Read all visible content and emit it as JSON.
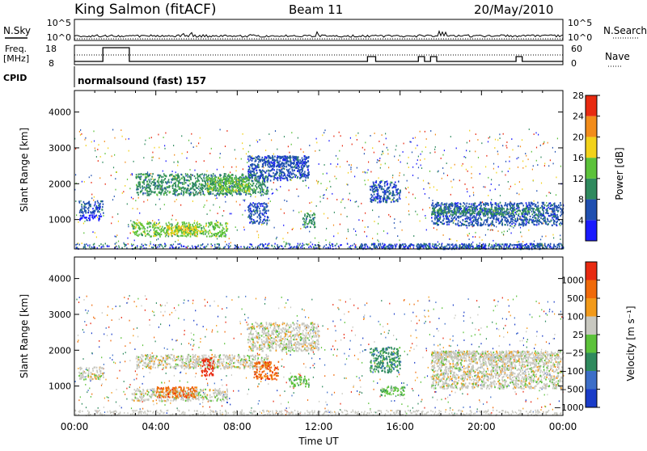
{
  "header": {
    "station": "King Salmon (fitACF)",
    "beam": "Beam 11",
    "date": "20/May/2010"
  },
  "top_panels": {
    "nsky_label": "N.Sky",
    "nsearch_label": "N.Search",
    "noise_ticks": [
      "10^5",
      "10^0"
    ],
    "freq_label_1": "Freq.",
    "freq_label_2": "[MHz]",
    "freq_ticks": [
      18,
      8
    ],
    "nave_label": "Nave",
    "nave_ticks": [
      60,
      0
    ],
    "cpid_label": "CPID",
    "cpid_value": "normalsound (fast) 157"
  },
  "chart_data": [
    {
      "type": "heatmap",
      "name": "power",
      "ylabel": "Slant Range [km]",
      "ylim": [
        180,
        4600
      ],
      "yticks": [
        1000,
        2000,
        3000,
        4000
      ],
      "xlim": [
        0,
        24
      ],
      "xticks": [
        "00:00",
        "04:00",
        "08:00",
        "12:00",
        "16:00",
        "20:00",
        "00:00"
      ],
      "colorbar": {
        "label": "Power [dB]",
        "ticks": [
          "4",
          "8",
          "12",
          "16",
          "20",
          "24",
          "28"
        ],
        "colors": [
          "#1a1aff",
          "#1f4fb0",
          "#2f8a5e",
          "#5cc23a",
          "#f2d21a",
          "#f28c1a",
          "#e82a10"
        ]
      },
      "regions": [
        {
          "t0": 0.2,
          "t1": 1.4,
          "r0": 1200,
          "r1": 1550,
          "level": 1
        },
        {
          "t0": 0.2,
          "t1": 1.3,
          "r0": 1000,
          "r1": 1150,
          "level": 0
        },
        {
          "t0": 2.8,
          "t1": 7.5,
          "r0": 550,
          "r1": 950,
          "level": 3
        },
        {
          "t0": 4.5,
          "t1": 6.0,
          "r0": 600,
          "r1": 850,
          "level": 4
        },
        {
          "t0": 3.0,
          "t1": 9.5,
          "r0": 1700,
          "r1": 2300,
          "level": 2
        },
        {
          "t0": 6.5,
          "t1": 8.7,
          "r0": 1800,
          "r1": 2200,
          "level": 3
        },
        {
          "t0": 8.5,
          "t1": 11.5,
          "r0": 2100,
          "r1": 2800,
          "level": 1
        },
        {
          "t0": 9.5,
          "t1": 11.0,
          "r0": 2500,
          "r1": 2800,
          "level": 1
        },
        {
          "t0": 8.5,
          "t1": 9.5,
          "r0": 900,
          "r1": 1500,
          "level": 1
        },
        {
          "t0": 11.2,
          "t1": 11.8,
          "r0": 800,
          "r1": 1200,
          "level": 2
        },
        {
          "t0": 14.5,
          "t1": 16.0,
          "r0": 1500,
          "r1": 2100,
          "level": 1
        },
        {
          "t0": 17.5,
          "t1": 24.0,
          "r0": 850,
          "r1": 1500,
          "level": 1
        },
        {
          "t0": 17.5,
          "t1": 23.0,
          "r0": 1150,
          "r1": 1350,
          "level": 2
        },
        {
          "t0": 14.0,
          "t1": 24.0,
          "r0": 200,
          "r1": 350,
          "level": 1
        }
      ]
    },
    {
      "type": "heatmap",
      "name": "velocity",
      "ylabel": "Slant Range [km]",
      "ylim": [
        180,
        4600
      ],
      "yticks": [
        1000,
        2000,
        3000,
        4000
      ],
      "xlim": [
        0,
        24
      ],
      "xticks": [
        "00:00",
        "04:00",
        "08:00",
        "12:00",
        "16:00",
        "20:00",
        "00:00"
      ],
      "xlabel": "Time UT",
      "colorbar": {
        "label": "Velocity [m s⁻¹]",
        "ticks": [
          "1000",
          "500",
          "100",
          "25",
          "−25",
          "−100",
          "−500",
          "−1000"
        ],
        "colors": [
          "#1a3cc8",
          "#3c6ec8",
          "#2f8a5e",
          "#5cc23a",
          "#c8c8c0",
          "#f29a1a",
          "#f06a0a",
          "#e82a10"
        ]
      },
      "regions": [
        {
          "t0": 0.2,
          "t1": 1.4,
          "r0": 1200,
          "r1": 1550,
          "level": 4
        },
        {
          "t0": 2.8,
          "t1": 7.5,
          "r0": 600,
          "r1": 950,
          "level": 4
        },
        {
          "t0": 4.0,
          "t1": 6.0,
          "r0": 700,
          "r1": 1000,
          "level": 6
        },
        {
          "t0": 3.0,
          "t1": 9.5,
          "r0": 1500,
          "r1": 1900,
          "level": 4
        },
        {
          "t0": 6.2,
          "t1": 6.8,
          "r0": 1300,
          "r1": 1800,
          "level": 7
        },
        {
          "t0": 8.8,
          "t1": 10.0,
          "r0": 1200,
          "r1": 1700,
          "level": 6
        },
        {
          "t0": 8.5,
          "t1": 12.0,
          "r0": 2000,
          "r1": 2800,
          "level": 4
        },
        {
          "t0": 10.5,
          "t1": 11.5,
          "r0": 1000,
          "r1": 1300,
          "level": 3
        },
        {
          "t0": 14.5,
          "t1": 16.0,
          "r0": 1400,
          "r1": 2100,
          "level": 2
        },
        {
          "t0": 15.0,
          "t1": 16.2,
          "r0": 750,
          "r1": 1000,
          "level": 3
        },
        {
          "t0": 17.5,
          "t1": 24.0,
          "r0": 950,
          "r1": 2000,
          "level": 4
        },
        {
          "t0": 17.5,
          "t1": 23.0,
          "r0": 1750,
          "r1": 2000,
          "level": 4
        }
      ]
    }
  ]
}
